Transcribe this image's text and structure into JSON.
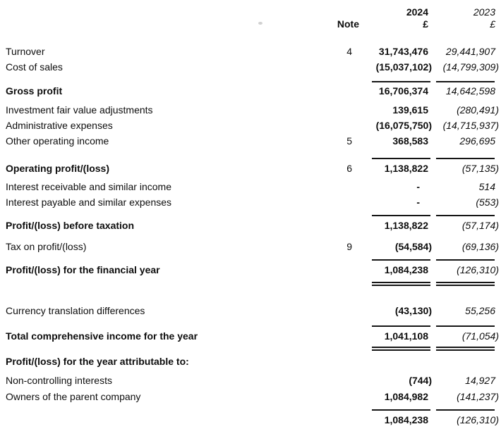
{
  "header": {
    "note_label": "Note",
    "year_2024": "2024",
    "year_2023": "2023",
    "currency_2024": "£",
    "currency_2023": "£"
  },
  "rows": [
    {
      "type": "item",
      "label": "Turnover",
      "note": "4",
      "v2024": "31,743,476",
      "v2023": "29,441,907",
      "mt": 22
    },
    {
      "type": "item",
      "label": "Cost of sales",
      "note": "",
      "v2024": "(15,037,102)",
      "v2023": "(14,799,309)",
      "mt": 5
    },
    {
      "type": "rule",
      "mt": 11
    },
    {
      "type": "total",
      "label": "Gross profit",
      "note": "",
      "v2024": "16,706,374",
      "v2023": "14,642,598",
      "mt": 4
    },
    {
      "type": "item",
      "label": "Investment fair value adjustments",
      "note": "",
      "v2024": "139,615",
      "v2023": "(280,491)",
      "mt": 10
    },
    {
      "type": "item",
      "label": "Administrative expenses",
      "note": "",
      "v2024": "(16,075,750)",
      "v2023": "(14,715,937)",
      "mt": 5
    },
    {
      "type": "item",
      "label": "Other operating income",
      "note": "5",
      "v2024": "368,583",
      "v2023": "296,695",
      "mt": 5
    },
    {
      "type": "rule",
      "mt": 15
    },
    {
      "type": "total",
      "label": "Operating profit/(loss)",
      "note": "6",
      "v2024": "1,138,822",
      "v2023": "(57,135)",
      "mt": 5
    },
    {
      "type": "item",
      "label": "Interest receivable and similar income",
      "note": "",
      "v2024": "-",
      "v2023": "514",
      "mt": 9
    },
    {
      "type": "item",
      "label": "Interest payable and similar expenses",
      "note": "",
      "v2024": "-",
      "v2023": "(553)",
      "mt": 5
    },
    {
      "type": "rule",
      "mt": 9
    },
    {
      "type": "total",
      "label": "Profit/(loss) before taxation",
      "note": "",
      "v2024": "1,138,822",
      "v2023": "(57,174)",
      "mt": 5
    },
    {
      "type": "item",
      "label": "Tax on profit/(loss)",
      "note": "9",
      "v2024": "(54,584)",
      "v2023": "(69,136)",
      "mt": 13
    },
    {
      "type": "rule",
      "mt": 9
    },
    {
      "type": "total",
      "label": "Profit/(loss) for the financial year",
      "note": "",
      "v2024": "1,084,238",
      "v2023": "(126,310)",
      "mt": 5
    },
    {
      "type": "double-rule",
      "mt": 8
    },
    {
      "type": "item",
      "label": "Currency translation differences",
      "note": "",
      "v2024": "(43,130)",
      "v2023": "55,256",
      "mt": 27
    },
    {
      "type": "rule",
      "mt": 12
    },
    {
      "type": "total",
      "label": "Total comprehensive income for the year",
      "note": "",
      "v2024": "1,041,108",
      "v2023": "(71,054)",
      "mt": 5
    },
    {
      "type": "double-rule",
      "mt": 6
    },
    {
      "type": "heading",
      "label": "Profit/(loss) for the year attributable to:",
      "note": "",
      "v2024": "",
      "v2023": "",
      "mt": 7
    },
    {
      "type": "item",
      "label": "Non-controlling interests",
      "note": "",
      "v2024": "(744)",
      "v2023": "14,927",
      "mt": 10
    },
    {
      "type": "item",
      "label": "Owners of the parent company",
      "note": "",
      "v2024": "1,084,982",
      "v2023": "(141,237)",
      "mt": 6
    },
    {
      "type": "rule",
      "mt": 9
    },
    {
      "type": "grand-total",
      "label": "",
      "note": "",
      "v2024": "1,084,238",
      "v2023": "(126,310)",
      "mt": 5
    }
  ]
}
